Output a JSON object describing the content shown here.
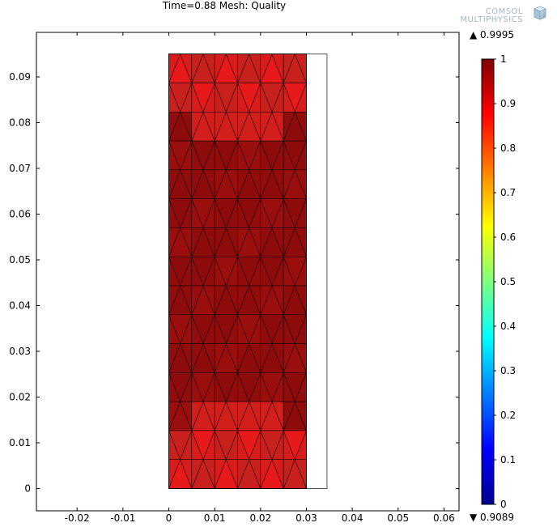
{
  "plot": {
    "title": "Time=0.88  Mesh: Quality"
  },
  "brand": {
    "line1": "COMSOL",
    "line2": "MULTIPHYSICS",
    "logo_icon": "comsol-cube-icon"
  },
  "chart_data": {
    "type": "heatmap",
    "title": "Time=0.88  Mesh: Quality",
    "xlabel": "",
    "ylabel": "",
    "xlim": [
      -0.029,
      0.064
    ],
    "ylim": [
      -0.005,
      0.1
    ],
    "x_ticks": [
      -0.02,
      -0.01,
      0,
      0.01,
      0.02,
      0.03,
      0.04,
      0.05,
      0.06
    ],
    "x_tick_labels": [
      "-0.02",
      "-0.01",
      "0",
      "0.01",
      "0.02",
      "0.03",
      "0.04",
      "0.05",
      "0.06"
    ],
    "y_ticks": [
      0,
      0.01,
      0.02,
      0.03,
      0.04,
      0.05,
      0.06,
      0.07,
      0.08,
      0.09
    ],
    "y_tick_labels": [
      "0",
      "0.01",
      "0.02",
      "0.03",
      "0.04",
      "0.05",
      "0.06",
      "0.07",
      "0.08",
      "0.09"
    ],
    "mesh_domain": {
      "x": [
        0,
        0.03
      ],
      "y": [
        0,
        0.095
      ]
    },
    "outline_domain": {
      "x": [
        0,
        0.0345
      ],
      "y": [
        0,
        0.095
      ]
    },
    "colormap": "rainbow",
    "colorbar": {
      "range": [
        0,
        1
      ],
      "ticks": [
        0,
        0.1,
        0.2,
        0.3,
        0.4,
        0.5,
        0.6,
        0.7,
        0.8,
        0.9,
        1
      ],
      "tick_labels": [
        "0",
        "0.1",
        "0.2",
        "0.3",
        "0.4",
        "0.5",
        "0.6",
        "0.7",
        "0.8",
        "0.9",
        "1"
      ],
      "max_label": "▲ 0.9995",
      "min_label": "▼ 0.9089",
      "max_value": 0.9995,
      "min_value": 0.9089
    },
    "grid": false,
    "colors": {
      "high_quality": "#8e0b0b",
      "low_quality": "#e7191a",
      "mesh_line": "#000000",
      "outline": "#555555"
    }
  }
}
